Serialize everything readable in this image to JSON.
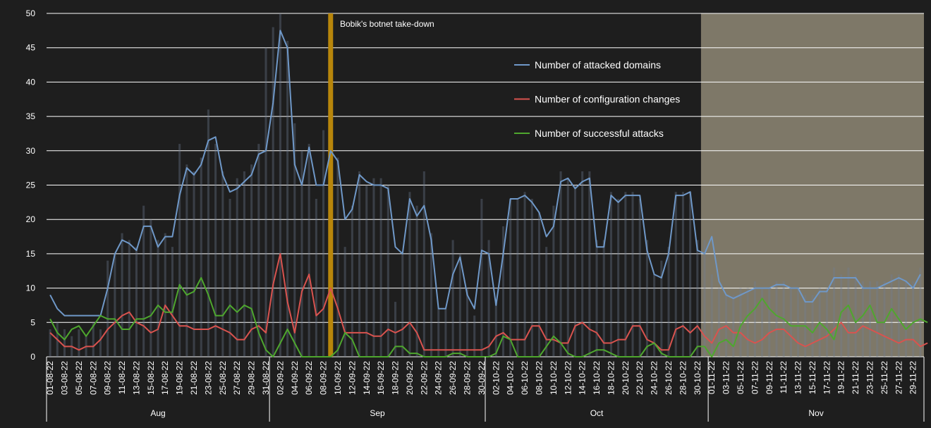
{
  "chart_data": {
    "type": "line",
    "title": "",
    "xlabel": "",
    "ylabel": "",
    "ylim": [
      0,
      50
    ],
    "yticks": [
      0,
      5,
      10,
      15,
      20,
      25,
      30,
      35,
      40,
      45,
      50
    ],
    "grid": true,
    "legend_position": "upper-center",
    "x_start": "2022-08-01",
    "x_end": "2022-11-30",
    "x_tick_labels": [
      "01-08-22",
      "03-08-22",
      "05-08-22",
      "07-08-22",
      "09-08-22",
      "11-08-22",
      "13-08-22",
      "15-08-22",
      "17-08-22",
      "19-08-22",
      "21-08-22",
      "23-08-22",
      "25-08-22",
      "27-08-22",
      "29-08-22",
      "31-08-22",
      "02-09-22",
      "04-09-22",
      "06-09-22",
      "08-09-22",
      "10-09-22",
      "12-09-22",
      "14-09-22",
      "16-09-22",
      "18-09-22",
      "20-09-22",
      "22-09-22",
      "24-09-22",
      "26-09-22",
      "28-09-22",
      "30-09-22",
      "02-10-22",
      "04-10-22",
      "06-10-22",
      "08-10-22",
      "10-10-22",
      "12-10-22",
      "14-10-22",
      "16-10-22",
      "18-10-22",
      "20-10-22",
      "22-10-22",
      "24-10-22",
      "26-10-22",
      "28-10-22",
      "30-10-22",
      "01-11-22",
      "03-11-22",
      "05-11-22",
      "07-11-22",
      "09-11-22",
      "11-11-22",
      "13-11-22",
      "15-11-22",
      "17-11-22",
      "19-11-22",
      "21-11-22",
      "23-11-22",
      "25-11-22",
      "27-11-22",
      "29-11-22"
    ],
    "months": [
      "Aug",
      "Sep",
      "Oct",
      "Nov"
    ],
    "annotation": {
      "label": "Bobik's botnet take-down",
      "x": "2022-09-09",
      "color": "#b8860b"
    },
    "shaded_region": {
      "from": "2022-10-31",
      "to": "2022-11-30",
      "color": "#f3e6c4",
      "opacity": 0.45
    },
    "colors": {
      "background": "#1e1e1e",
      "grid": "#ffffff",
      "text": "#ffffff"
    },
    "series": [
      {
        "name": "Number of attacked domains",
        "color": "#6f98c8",
        "values": [
          9,
          7,
          6,
          6,
          6,
          6,
          6,
          6,
          10,
          15,
          17,
          16.5,
          15.5,
          19,
          19,
          16,
          17.5,
          17.5,
          23.5,
          27.5,
          26.5,
          28,
          31.5,
          32,
          26.5,
          24,
          24.5,
          25.5,
          26.5,
          29.5,
          30,
          37,
          47.5,
          45,
          28,
          25,
          30.5,
          25,
          25,
          30,
          28.5,
          20,
          21.5,
          26.5,
          25.5,
          25,
          25,
          24.5,
          16,
          15,
          23,
          20.5,
          22,
          17,
          7,
          7,
          12,
          14.5,
          9,
          7,
          15.5,
          15,
          7.5,
          15,
          23,
          23,
          23.5,
          22.5,
          21,
          17.5,
          19,
          25.5,
          26,
          24.5,
          25.5,
          26,
          16,
          16,
          23.5,
          22.5,
          23.5,
          23.5,
          23.5,
          15.5,
          12,
          11.5,
          15,
          23.5,
          23.5,
          24,
          15.5,
          15,
          17.5,
          11,
          9,
          8.5,
          9,
          9.5,
          10,
          10,
          10,
          10.5,
          10.5,
          10,
          10,
          8,
          8,
          9.5,
          9.5,
          11.5,
          11.5,
          11.5,
          11.5,
          10,
          10,
          10,
          10.5,
          11,
          11.5,
          11,
          10,
          12
        ]
      },
      {
        "name": "Number of configuration changes",
        "color": "#d9534f",
        "values": [
          3.5,
          2.5,
          1.5,
          1.5,
          1,
          1.5,
          1.5,
          2.5,
          4,
          5,
          6,
          6.5,
          5,
          4.5,
          3.5,
          4,
          7.5,
          6,
          4.5,
          4.5,
          4,
          4,
          4,
          4.5,
          4,
          3.5,
          2.5,
          2.5,
          4,
          4.5,
          3.5,
          10.5,
          15,
          8,
          3.5,
          9.5,
          12,
          6,
          7,
          10,
          7,
          3.5,
          3.5,
          3.5,
          3.5,
          3,
          3,
          4,
          3.5,
          4,
          5,
          3.5,
          1,
          1,
          1,
          1,
          1,
          1,
          1,
          1,
          1,
          1.5,
          3,
          3.5,
          2.5,
          2.5,
          2.5,
          4.5,
          4.5,
          2.5,
          2.5,
          2,
          2,
          4.5,
          5,
          4,
          3.5,
          2,
          2,
          2.5,
          2.5,
          4.5,
          4.5,
          2.5,
          2,
          1,
          1,
          4,
          4.5,
          3.5,
          4.5,
          3,
          2,
          4,
          4.5,
          3.5,
          3.5,
          2.5,
          2,
          2.5,
          3.5,
          4,
          4,
          3,
          2,
          1.5,
          2,
          2.5,
          3,
          4,
          5,
          3.5,
          3.5,
          4.5,
          4,
          3.5,
          3,
          2.5,
          2,
          2.5,
          2.5,
          1.5,
          2
        ]
      },
      {
        "name": "Number of successful attacks",
        "color": "#4ea72e",
        "values": [
          5.5,
          3.5,
          2.5,
          4,
          4.5,
          3,
          4.5,
          6,
          5.5,
          5.5,
          4,
          4,
          5.5,
          5.5,
          6,
          7.5,
          6.5,
          6.5,
          10.5,
          9,
          9.5,
          11.5,
          9,
          6,
          6,
          7.5,
          6.5,
          7.5,
          7,
          3.5,
          1,
          0,
          2,
          4,
          2,
          0,
          0,
          0,
          0,
          0,
          1,
          3.5,
          2.5,
          0,
          0,
          0,
          0,
          0,
          1.5,
          1.5,
          0.5,
          0.5,
          0,
          0,
          0,
          0,
          0.5,
          0.5,
          0,
          0,
          0,
          0,
          0.5,
          3,
          2.5,
          0,
          0,
          0,
          0,
          1.5,
          3,
          2,
          0.5,
          0,
          0,
          0.5,
          1,
          1,
          0.5,
          0,
          0,
          0,
          0,
          1.5,
          2,
          0.5,
          0,
          0,
          0,
          0,
          1.5,
          1.5,
          0,
          2,
          2.5,
          1.5,
          4.5,
          6,
          7,
          8.5,
          7,
          6,
          5.5,
          4.5,
          4.5,
          4.5,
          3.5,
          5,
          4,
          2.5,
          6.5,
          7.5,
          5,
          6,
          7.5,
          5,
          5,
          7,
          5.5,
          4,
          5,
          5.5,
          5
        ]
      }
    ],
    "daily_bars": [
      4,
      5,
      4,
      3,
      4,
      3,
      5,
      4,
      14,
      15,
      18,
      17,
      16,
      22,
      20,
      17,
      18,
      16,
      31,
      28,
      27,
      29,
      36,
      31,
      27,
      23,
      26,
      27,
      28,
      31,
      45,
      48,
      50,
      46,
      34,
      30,
      31,
      23,
      33,
      31,
      29,
      16,
      22,
      27,
      25,
      26,
      26,
      25,
      8,
      15,
      24,
      22,
      27,
      18,
      7,
      7,
      17,
      15,
      10,
      6,
      23,
      17,
      8,
      19,
      23,
      23,
      24,
      23,
      21,
      16,
      22,
      27,
      26,
      25,
      27,
      27,
      17,
      17,
      24,
      23,
      24,
      24,
      23,
      17,
      12,
      14,
      16,
      24,
      24,
      24,
      17,
      17,
      12,
      10,
      9,
      9,
      10,
      10,
      11,
      10,
      10,
      11,
      11,
      10,
      10,
      9,
      9,
      10,
      10,
      13,
      12,
      13,
      12,
      11,
      11,
      11,
      11,
      12,
      12,
      11,
      11,
      13
    ]
  }
}
